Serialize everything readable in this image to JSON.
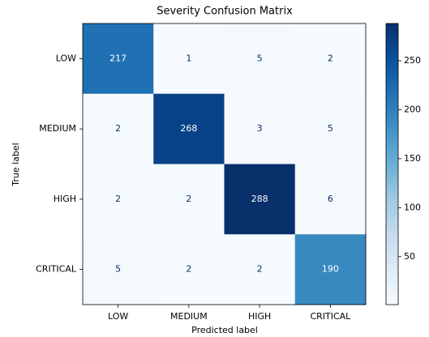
{
  "chart_data": {
    "type": "heatmap",
    "title": "Severity Confusion Matrix",
    "xlabel": "Predicted label",
    "ylabel": "True label",
    "x": [
      "LOW",
      "MEDIUM",
      "HIGH",
      "CRITICAL"
    ],
    "y": [
      "LOW",
      "MEDIUM",
      "HIGH",
      "CRITICAL"
    ],
    "values": [
      [
        217,
        1,
        5,
        2
      ],
      [
        2,
        268,
        3,
        5
      ],
      [
        2,
        2,
        288,
        6
      ],
      [
        5,
        2,
        2,
        190
      ]
    ],
    "cmap": "Blues",
    "clim": [
      1,
      288
    ],
    "cticks": [
      50,
      100,
      150,
      200,
      250
    ]
  }
}
